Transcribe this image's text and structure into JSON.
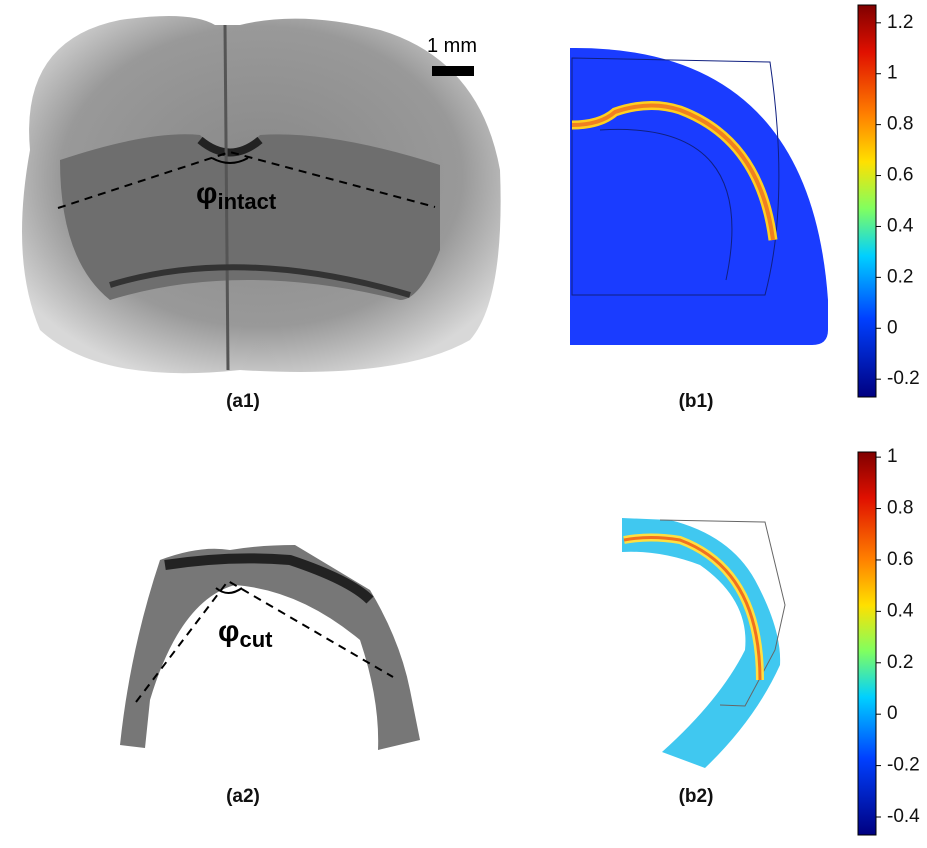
{
  "scale_bar": "1 mm",
  "angle_labels": [
    {
      "symbol": "φ",
      "subscript": "intact"
    },
    {
      "symbol": "φ",
      "subscript": "cut"
    }
  ],
  "panel_labels": [
    "(a1)",
    "(b1)",
    "(a2)",
    "(b2)"
  ],
  "colorbars": [
    {
      "range": [
        -0.27,
        1.27
      ],
      "ticks": [
        1.2,
        1,
        0.8,
        0.6,
        0.4,
        0.2,
        0,
        -0.2
      ]
    },
    {
      "range": [
        -0.47,
        1.02
      ],
      "ticks": [
        1,
        0.8,
        0.6,
        0.4,
        0.2,
        0,
        -0.2,
        -0.4
      ]
    }
  ]
}
